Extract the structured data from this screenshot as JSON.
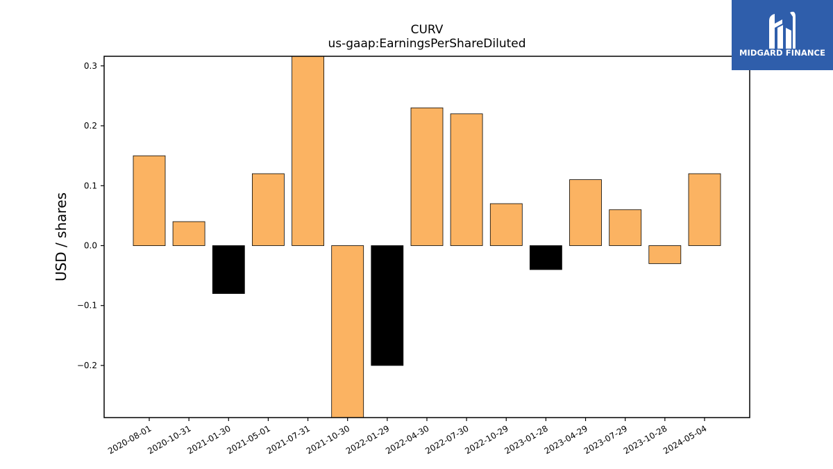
{
  "logo": {
    "text": "MIDGARD FINANCE",
    "background": "#2f5eab",
    "icon": "midgard-logo-mark"
  },
  "chart_data": {
    "type": "bar",
    "title": "CURV",
    "subtitle": "us-gaap:EarningsPerShareDiluted",
    "ylabel": "USD / shares",
    "xlabel": "",
    "categories": [
      "2020-08-01",
      "2020-10-31",
      "2021-01-30",
      "2021-05-01",
      "2021-07-31",
      "2021-10-30",
      "2022-01-29",
      "2022-04-30",
      "2022-07-30",
      "2022-10-29",
      "2023-01-28",
      "2023-04-29",
      "2023-07-29",
      "2023-10-28",
      "2024-05-04"
    ],
    "values": [
      0.15,
      0.04,
      -0.08,
      0.12,
      0.32,
      -0.29,
      -0.2,
      0.23,
      0.22,
      0.07,
      -0.04,
      0.11,
      0.06,
      -0.03,
      0.12
    ],
    "colors": [
      "#fbb362",
      "#fbb362",
      "#000000",
      "#fbb362",
      "#fbb362",
      "#fbb362",
      "#000000",
      "#fbb362",
      "#fbb362",
      "#fbb362",
      "#000000",
      "#fbb362",
      "#fbb362",
      "#fbb362",
      "#fbb362"
    ],
    "ylim": [
      -0.287,
      0.316
    ],
    "yticks": [
      -0.2,
      -0.1,
      0.0,
      0.1,
      0.2,
      0.3
    ],
    "ytick_labels": [
      "−0.2",
      "−0.1",
      "0.0",
      "0.1",
      "0.2",
      "0.3"
    ],
    "grid": false,
    "legend": "none"
  }
}
